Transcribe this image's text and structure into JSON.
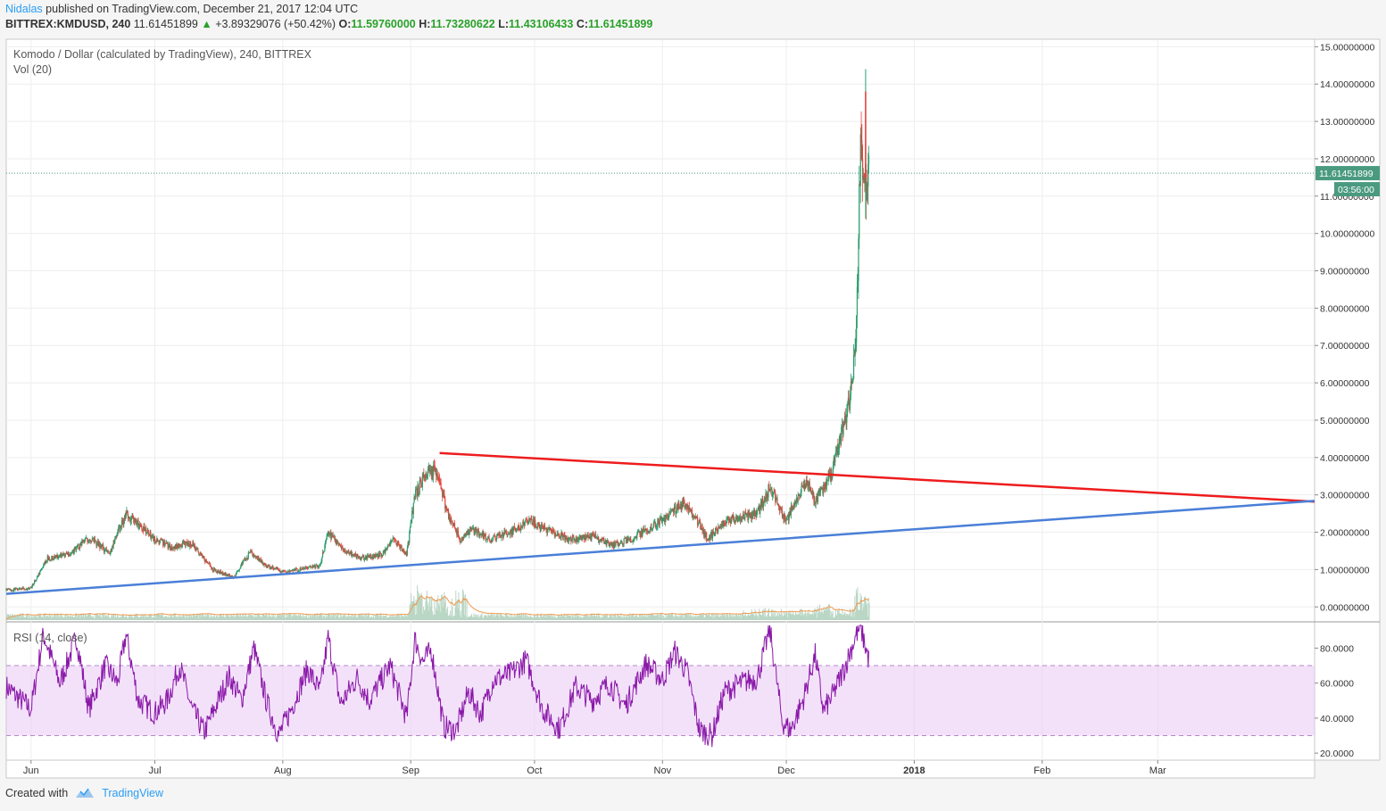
{
  "header": {
    "author": "Nidalas",
    "published": "published on TradingView.com, December 21, 2017 12:04 UTC",
    "symbol": "BITTREX:KMDUSD, 240",
    "last": "11.61451899",
    "change_arrow": "▲",
    "change": "+3.89329076 (+50.42%)",
    "o_label": "O:",
    "o": "11.59760000",
    "h_label": "H:",
    "h": "11.73280622",
    "l_label": "L:",
    "l": "11.43106433",
    "c_label": "C:",
    "c": "11.61451899"
  },
  "legend": {
    "title": "Komodo / Dollar (calculated by TradingView), 240, BITTREX",
    "volume": "Vol (20)",
    "rsi": "RSI (14, close)"
  },
  "price_tag": "11.61451899",
  "time_tag": "03:56:00",
  "footer": {
    "created": "Created with",
    "brand": "TradingView"
  },
  "colors": {
    "up": "#2a9d6c",
    "down": "#e0463c",
    "trend_red": "#ee1c1c",
    "trend_blue": "#4a7fd8",
    "rsi_line": "#8a18a8",
    "rsi_band": "#e9c9f5",
    "price_line": "#4a9a80",
    "volume": "#b9d6c4",
    "volume_ma": "#f09a50",
    "grid": "#eeeeee"
  },
  "chart_data": {
    "type": "candlestick",
    "title": "Komodo / Dollar (calculated by TradingView), 240, BITTREX",
    "x_ticks": [
      "Jun",
      "Jul",
      "Aug",
      "Sep",
      "Oct",
      "Nov",
      "Dec",
      "2018",
      "Feb",
      "Mar"
    ],
    "y_ticks": [
      "0.00000000",
      "1.00000000",
      "2.00000000",
      "3.00000000",
      "4.00000000",
      "5.00000000",
      "6.00000000",
      "7.00000000",
      "8.00000000",
      "9.00000000",
      "10.00000000",
      "11.00000000",
      "12.00000000",
      "13.00000000",
      "14.00000000",
      "15.00000000"
    ],
    "ylim": [
      -0.4,
      15.2
    ],
    "x_start": "2017-05-26",
    "x_end": "2018-04-08",
    "last_price": 11.61451899,
    "price_path": [
      [
        "2017-05-26",
        0.45
      ],
      [
        "2017-06-01",
        0.5
      ],
      [
        "2017-06-05",
        1.3
      ],
      [
        "2017-06-10",
        1.4
      ],
      [
        "2017-06-15",
        1.85
      ],
      [
        "2017-06-20",
        1.45
      ],
      [
        "2017-06-24",
        2.5
      ],
      [
        "2017-06-28",
        2.1
      ],
      [
        "2017-07-01",
        1.8
      ],
      [
        "2017-07-05",
        1.6
      ],
      [
        "2017-07-10",
        1.7
      ],
      [
        "2017-07-15",
        1.0
      ],
      [
        "2017-07-20",
        0.8
      ],
      [
        "2017-07-24",
        1.45
      ],
      [
        "2017-07-28",
        1.1
      ],
      [
        "2017-08-01",
        0.95
      ],
      [
        "2017-08-05",
        1.0
      ],
      [
        "2017-08-10",
        1.1
      ],
      [
        "2017-08-12",
        2.0
      ],
      [
        "2017-08-16",
        1.5
      ],
      [
        "2017-08-20",
        1.3
      ],
      [
        "2017-08-25",
        1.4
      ],
      [
        "2017-08-28",
        1.8
      ],
      [
        "2017-08-31",
        1.4
      ],
      [
        "2017-09-02",
        3.0
      ],
      [
        "2017-09-05",
        3.6
      ],
      [
        "2017-09-07",
        3.7
      ],
      [
        "2017-09-10",
        2.5
      ],
      [
        "2017-09-13",
        1.8
      ],
      [
        "2017-09-16",
        2.1
      ],
      [
        "2017-09-20",
        1.8
      ],
      [
        "2017-09-25",
        2.0
      ],
      [
        "2017-09-30",
        2.3
      ],
      [
        "2017-10-05",
        2.0
      ],
      [
        "2017-10-10",
        1.8
      ],
      [
        "2017-10-15",
        1.9
      ],
      [
        "2017-10-20",
        1.65
      ],
      [
        "2017-10-25",
        1.85
      ],
      [
        "2017-10-30",
        2.2
      ],
      [
        "2017-11-03",
        2.5
      ],
      [
        "2017-11-06",
        2.8
      ],
      [
        "2017-11-10",
        2.2
      ],
      [
        "2017-11-12",
        1.8
      ],
      [
        "2017-11-16",
        2.3
      ],
      [
        "2017-11-20",
        2.4
      ],
      [
        "2017-11-24",
        2.5
      ],
      [
        "2017-11-27",
        3.2
      ],
      [
        "2017-12-01",
        2.3
      ],
      [
        "2017-12-03",
        2.8
      ],
      [
        "2017-12-06",
        3.4
      ],
      [
        "2017-12-08",
        2.8
      ],
      [
        "2017-12-10",
        3.2
      ],
      [
        "2017-12-12",
        3.6
      ],
      [
        "2017-12-14",
        4.5
      ],
      [
        "2017-12-16",
        5.4
      ],
      [
        "2017-12-17",
        6.0
      ],
      [
        "2017-12-18",
        7.5
      ],
      [
        "2017-12-19",
        12.5
      ],
      [
        "2017-12-20",
        11.2
      ],
      [
        "2017-12-21",
        11.61
      ]
    ],
    "volume": {
      "ylim": [
        0,
        12
      ],
      "series": [
        [
          "2017-09-02",
          9.0
        ],
        [
          "2017-09-04",
          10.5
        ],
        [
          "2017-09-06",
          7.5
        ],
        [
          "2017-09-08",
          8.5
        ],
        [
          "2017-09-11",
          8.0
        ],
        [
          "2017-09-13",
          9.5
        ],
        [
          "2017-12-10",
          5.0
        ],
        [
          "2017-12-19",
          10.0
        ],
        [
          "2017-12-20",
          8.0
        ]
      ]
    },
    "rsi": {
      "title": "RSI (14, close)",
      "y_ticks": [
        "20.0000",
        "40.0000",
        "60.0000",
        "80.0000"
      ],
      "ylim": [
        16,
        95
      ],
      "band": [
        30,
        70
      ],
      "path": [
        [
          "2017-05-26",
          58
        ],
        [
          "2017-06-01",
          45
        ],
        [
          "2017-06-04",
          88
        ],
        [
          "2017-06-08",
          60
        ],
        [
          "2017-06-12",
          86
        ],
        [
          "2017-06-15",
          45
        ],
        [
          "2017-06-19",
          70
        ],
        [
          "2017-06-22",
          60
        ],
        [
          "2017-06-24",
          88
        ],
        [
          "2017-06-27",
          50
        ],
        [
          "2017-07-01",
          43
        ],
        [
          "2017-07-04",
          50
        ],
        [
          "2017-07-07",
          70
        ],
        [
          "2017-07-10",
          45
        ],
        [
          "2017-07-13",
          32
        ],
        [
          "2017-07-16",
          48
        ],
        [
          "2017-07-19",
          64
        ],
        [
          "2017-07-22",
          50
        ],
        [
          "2017-07-25",
          80
        ],
        [
          "2017-07-28",
          50
        ],
        [
          "2017-07-31",
          30
        ],
        [
          "2017-08-03",
          45
        ],
        [
          "2017-08-07",
          68
        ],
        [
          "2017-08-10",
          55
        ],
        [
          "2017-08-12",
          86
        ],
        [
          "2017-08-15",
          48
        ],
        [
          "2017-08-19",
          63
        ],
        [
          "2017-08-22",
          50
        ],
        [
          "2017-08-27",
          70
        ],
        [
          "2017-08-31",
          40
        ],
        [
          "2017-09-02",
          85
        ],
        [
          "2017-09-04",
          72
        ],
        [
          "2017-09-06",
          79
        ],
        [
          "2017-09-09",
          35
        ],
        [
          "2017-09-12",
          33
        ],
        [
          "2017-09-15",
          55
        ],
        [
          "2017-09-18",
          42
        ],
        [
          "2017-09-21",
          62
        ],
        [
          "2017-09-25",
          65
        ],
        [
          "2017-09-29",
          73
        ],
        [
          "2017-10-03",
          45
        ],
        [
          "2017-10-07",
          34
        ],
        [
          "2017-10-11",
          58
        ],
        [
          "2017-10-15",
          50
        ],
        [
          "2017-10-19",
          60
        ],
        [
          "2017-10-23",
          47
        ],
        [
          "2017-10-28",
          71
        ],
        [
          "2017-11-01",
          62
        ],
        [
          "2017-11-04",
          78
        ],
        [
          "2017-11-07",
          66
        ],
        [
          "2017-11-10",
          33
        ],
        [
          "2017-11-13",
          30
        ],
        [
          "2017-11-16",
          55
        ],
        [
          "2017-11-20",
          60
        ],
        [
          "2017-11-24",
          63
        ],
        [
          "2017-11-27",
          91
        ],
        [
          "2017-11-30",
          38
        ],
        [
          "2017-12-02",
          33
        ],
        [
          "2017-12-05",
          50
        ],
        [
          "2017-12-08",
          76
        ],
        [
          "2017-12-10",
          44
        ],
        [
          "2017-12-12",
          52
        ],
        [
          "2017-12-15",
          68
        ],
        [
          "2017-12-18",
          88
        ],
        [
          "2017-12-19",
          92
        ],
        [
          "2017-12-21",
          73
        ]
      ]
    },
    "trendlines": [
      {
        "color": "red",
        "from": [
          "2017-09-08",
          4.12
        ],
        "to": [
          "2018-04-08",
          2.82
        ]
      },
      {
        "color": "blue",
        "from": [
          "2017-05-26",
          0.35
        ],
        "to": [
          "2018-04-08",
          2.84
        ]
      }
    ]
  }
}
